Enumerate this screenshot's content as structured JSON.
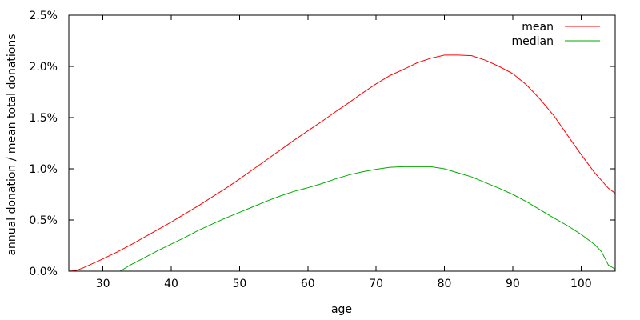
{
  "chart_data": {
    "type": "line",
    "xlabel": "age",
    "ylabel": "annual donation / mean total donations",
    "xlim": [
      25,
      105
    ],
    "ylim": [
      0,
      2.5
    ],
    "grid": false,
    "legend_position": "top-right",
    "x_ticks": [
      {
        "value": 30,
        "label": "30"
      },
      {
        "value": 40,
        "label": "40"
      },
      {
        "value": 50,
        "label": "50"
      },
      {
        "value": 60,
        "label": "60"
      },
      {
        "value": 70,
        "label": "70"
      },
      {
        "value": 80,
        "label": "80"
      },
      {
        "value": 90,
        "label": "90"
      },
      {
        "value": 100,
        "label": "100"
      }
    ],
    "y_ticks": [
      {
        "value": 0,
        "label": "0.0%"
      },
      {
        "value": 0.5,
        "label": "0.5%"
      },
      {
        "value": 1.0,
        "label": "1.0%"
      },
      {
        "value": 1.5,
        "label": "1.5%"
      },
      {
        "value": 2.0,
        "label": "2.0%"
      },
      {
        "value": 2.5,
        "label": "2.5%"
      }
    ],
    "series": [
      {
        "name": "mean",
        "color": "#ff0000",
        "x": [
          25,
          26,
          27,
          28,
          30,
          32,
          34,
          36,
          38,
          40,
          42,
          44,
          46,
          48,
          50,
          52,
          54,
          56,
          58,
          60,
          62,
          64,
          66,
          68,
          70,
          72,
          74,
          76,
          78,
          80,
          82,
          84,
          86,
          88,
          90,
          92,
          94,
          96,
          98,
          100,
          102,
          104,
          105
        ],
        "y": [
          0.0,
          0.005,
          0.03,
          0.06,
          0.12,
          0.185,
          0.255,
          0.33,
          0.405,
          0.48,
          0.56,
          0.64,
          0.725,
          0.81,
          0.9,
          0.995,
          1.09,
          1.185,
          1.28,
          1.37,
          1.46,
          1.555,
          1.645,
          1.74,
          1.83,
          1.91,
          1.97,
          2.035,
          2.08,
          2.11,
          2.11,
          2.105,
          2.06,
          2.0,
          1.93,
          1.82,
          1.68,
          1.52,
          1.33,
          1.14,
          0.96,
          0.81,
          0.76
        ]
      },
      {
        "name": "median",
        "color": "#00aa00",
        "x": [
          32.5,
          34,
          36,
          38,
          40,
          42,
          44,
          46,
          48,
          50,
          52,
          54,
          56,
          58,
          60,
          62,
          64,
          66,
          68,
          70,
          72,
          74,
          76,
          78,
          80,
          82,
          84,
          86,
          88,
          90,
          92,
          94,
          96,
          98,
          100,
          102,
          103,
          104,
          105
        ],
        "y": [
          0.0,
          0.06,
          0.13,
          0.2,
          0.265,
          0.33,
          0.4,
          0.46,
          0.52,
          0.575,
          0.63,
          0.685,
          0.735,
          0.78,
          0.815,
          0.855,
          0.9,
          0.94,
          0.97,
          0.995,
          1.015,
          1.02,
          1.02,
          1.02,
          1.0,
          0.96,
          0.92,
          0.865,
          0.81,
          0.75,
          0.68,
          0.6,
          0.52,
          0.445,
          0.36,
          0.26,
          0.19,
          0.06,
          0.02
        ]
      }
    ]
  }
}
